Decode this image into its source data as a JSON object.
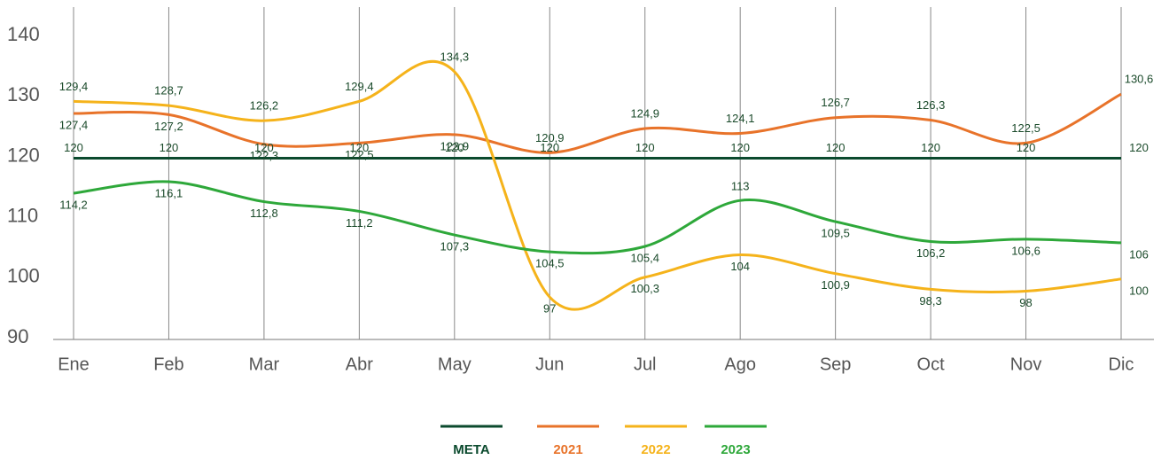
{
  "chart_data": {
    "type": "line",
    "categories": [
      "Ene",
      "Feb",
      "Mar",
      "Abr",
      "May",
      "Jun",
      "Jul",
      "Ago",
      "Sep",
      "Oct",
      "Nov",
      "Dic"
    ],
    "series": [
      {
        "name": "META",
        "color": "#0b4a2e",
        "values": [
          120,
          120,
          120,
          120,
          120,
          120,
          120,
          120,
          120,
          120,
          120,
          120
        ]
      },
      {
        "name": "2021",
        "color": "#e8732a",
        "values": [
          127.4,
          127.2,
          122.3,
          122.5,
          123.9,
          120.9,
          124.9,
          124.1,
          126.7,
          126.3,
          122.5,
          130.6
        ],
        "value_labels": [
          "127,4",
          "127,2",
          "122,3",
          "122,5",
          "123,9",
          "120,9",
          "124,9",
          "124,1",
          "126,7",
          "126,3",
          "122,5",
          "130,6"
        ]
      },
      {
        "name": "2022",
        "color": "#f5b31b",
        "values": [
          129.4,
          128.7,
          126.2,
          129.4,
          134.3,
          97,
          100.3,
          104,
          100.9,
          98.3,
          98,
          100
        ],
        "value_labels": [
          "129,4",
          "128,7",
          "126,2",
          "129,4",
          "134,3",
          "97",
          "100,3",
          "104",
          "100,9",
          "98,3",
          "98",
          "100"
        ]
      },
      {
        "name": "2023",
        "color": "#2ea83a",
        "values": [
          114.2,
          116.1,
          112.8,
          111.2,
          107.3,
          104.5,
          105.4,
          113,
          109.5,
          106.2,
          106.6,
          106
        ],
        "value_labels": [
          "114,2",
          "116,1",
          "112,8",
          "111,2",
          "107,3",
          "104,5",
          "105,4",
          "113",
          "109,5",
          "106,2",
          "106,6",
          "106"
        ]
      }
    ],
    "ylim": [
      90,
      145
    ],
    "yticks": [
      90,
      100,
      110,
      120,
      130,
      140
    ],
    "grid": true,
    "legend": "bottom"
  }
}
